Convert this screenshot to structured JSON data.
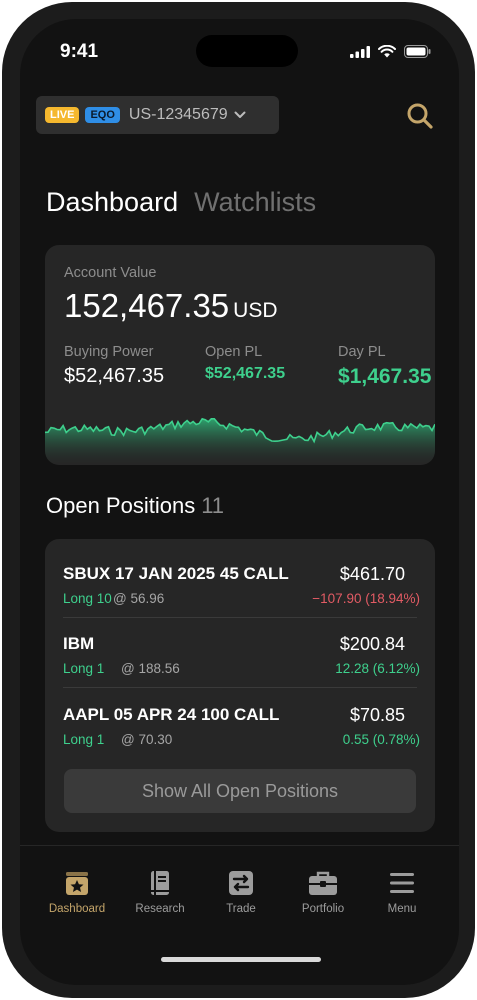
{
  "status_bar": {
    "time": "9:41"
  },
  "account_selector": {
    "live_badge": "LIVE",
    "type_badge": "EQO",
    "account_id": "US-12345679"
  },
  "tabs": [
    {
      "label": "Dashboard",
      "active": true
    },
    {
      "label": "Watchlists",
      "active": false
    }
  ],
  "account_card": {
    "label": "Account Value",
    "value": "152,467.35",
    "currency": "USD",
    "stats": [
      {
        "label": "Buying Power",
        "prefix": "$",
        "value": "52,467.35"
      },
      {
        "label": "Open PL",
        "prefix": "$",
        "value": "52,467.35"
      },
      {
        "label": "Day PL",
        "prefix": "$",
        "value": "1,467.35"
      }
    ]
  },
  "open_positions": {
    "title": "Open Positions",
    "count": "11",
    "items": [
      {
        "symbol": "SBUX 17 JAN 2025 45 CALL",
        "price": "$461.70",
        "qty": "Long 10",
        "avg": "@ 56.96",
        "change": "−107.90 (18.94%)",
        "change_color": "#e25b64"
      },
      {
        "symbol": "IBM",
        "price": "$200.84",
        "qty": "Long 1",
        "avg": "@ 188.56",
        "change": "12.28 (6.12%)",
        "change_color": "#3ed08d"
      },
      {
        "symbol": "AAPL 05 APR 24 100 CALL",
        "price": "$70.85",
        "qty": "Long 1",
        "avg": "@ 70.30",
        "change": "0.55 (0.78%)",
        "change_color": "#3ed08d"
      }
    ],
    "show_all_label": "Show All Open Positions"
  },
  "bottom_nav": [
    {
      "label": "Dashboard",
      "icon": "dashboard-icon",
      "active": true
    },
    {
      "label": "Research",
      "icon": "research-book-icon",
      "active": false
    },
    {
      "label": "Trade",
      "icon": "trade-icon",
      "active": false
    },
    {
      "label": "Portfolio",
      "icon": "briefcase-icon",
      "active": false
    },
    {
      "label": "Menu",
      "icon": "menu-icon",
      "active": false
    }
  ],
  "colors": {
    "accent_gold": "#c4a56a",
    "positive": "#3ed08d",
    "negative": "#e25b64",
    "live_badge": "#f5b82e",
    "eqo_badge": "#2f8ee6"
  }
}
